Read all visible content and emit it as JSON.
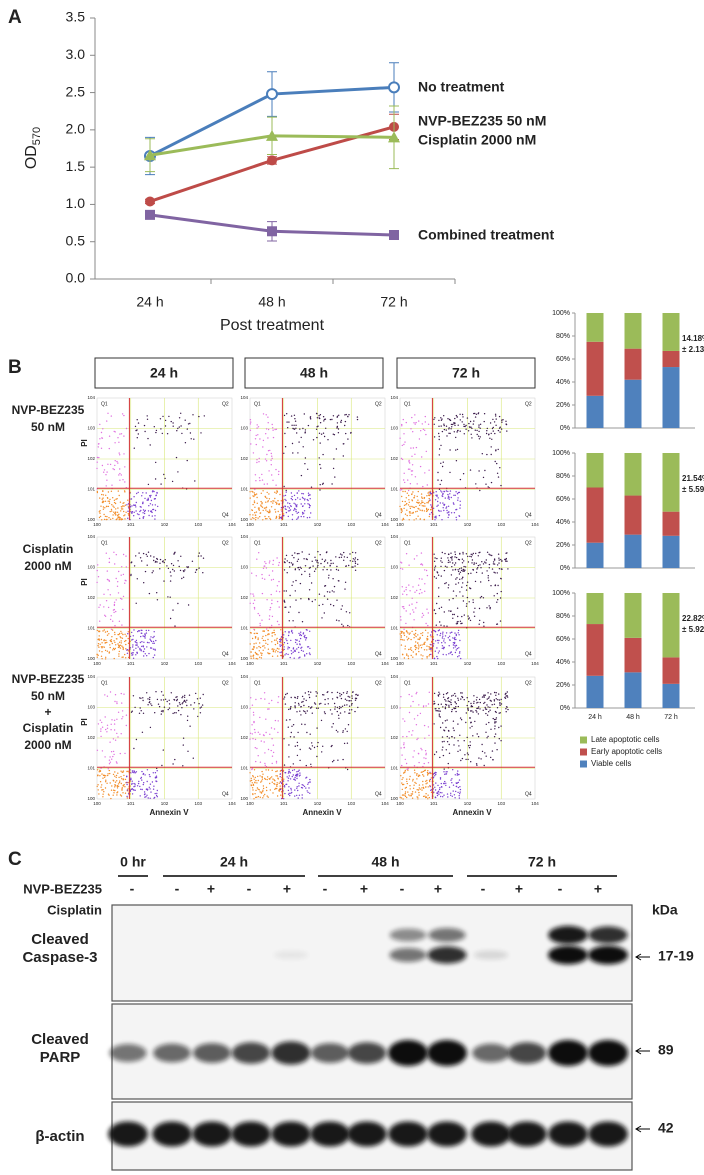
{
  "panel_labels": [
    "A",
    "B",
    "C"
  ],
  "chart_data": [
    {
      "type": "line",
      "y_label": "OD",
      "y_label_subscript": "570",
      "x_label": "Post treatment",
      "categories": [
        "24 h",
        "48 h",
        "72 h"
      ],
      "ylim": [
        0,
        3.5
      ],
      "yticks": [
        {
          "value": 0,
          "label": "0.0"
        },
        {
          "value": 0.5,
          "label": "0.5"
        },
        {
          "value": 1,
          "label": "1.0"
        },
        {
          "value": 1.5,
          "label": "1.5"
        },
        {
          "value": 2,
          "label": "2.0"
        },
        {
          "value": 2.5,
          "label": "2.5"
        },
        {
          "value": 3,
          "label": "3.0"
        },
        {
          "value": 3.5,
          "label": "3.5"
        }
      ],
      "series": [
        {
          "name": "No treatment",
          "color": "#4a7ebb",
          "marker": "open-circle",
          "values": [
            1.65,
            2.48,
            2.57
          ],
          "errors": [
            0.25,
            0.3,
            0.33
          ]
        },
        {
          "name": "NVP-BEZ235  50 nM",
          "color": "#be4b48",
          "marker": "circle",
          "values": [
            1.04,
            1.59,
            2.04
          ],
          "errors": [
            0.03,
            0.05,
            0.17
          ]
        },
        {
          "name": "Cisplatin  2000 nM",
          "color": "#9bbb59",
          "marker": "triangle",
          "values": [
            1.66,
            1.92,
            1.9
          ],
          "errors": [
            0.22,
            0.25,
            0.42
          ]
        },
        {
          "name": "Combined treatment",
          "color": "#8064a2",
          "marker": "square",
          "values": [
            0.86,
            0.64,
            0.59
          ],
          "errors": [
            0.04,
            0.13,
            0.02
          ]
        }
      ]
    },
    {
      "type": "stacked_bar",
      "categories": [
        "24 h",
        "48 h",
        "72 h"
      ],
      "ylim": [
        0,
        100
      ],
      "yticks": [
        {
          "value": 0,
          "label": "0%"
        },
        {
          "value": 20,
          "label": "20%"
        },
        {
          "value": 40,
          "label": "40%"
        },
        {
          "value": 60,
          "label": "60%"
        },
        {
          "value": 80,
          "label": "80%"
        },
        {
          "value": 100,
          "label": "100%"
        }
      ],
      "series": [
        {
          "name": "Viable cells",
          "color": "#4f81bd"
        },
        {
          "name": "Early apoptotic cells",
          "color": "#c0504d"
        },
        {
          "name": "Late apoptotic cells",
          "color": "#9bbb59"
        }
      ],
      "panels": [
        {
          "values": [
            [
              28,
              42,
              53
            ],
            [
              47,
              27,
              14
            ],
            [
              25,
              31,
              33
            ]
          ],
          "annotation": [
            "14.18%",
            "± 2.13%"
          ]
        },
        {
          "values": [
            [
              22,
              29,
              28
            ],
            [
              48,
              34,
              21
            ],
            [
              30,
              37,
              51
            ]
          ],
          "annotation": [
            "21.54%",
            "± 5.59%"
          ]
        },
        {
          "values": [
            [
              28,
              31,
              21
            ],
            [
              45,
              30,
              23
            ],
            [
              27,
              39,
              56
            ]
          ],
          "annotation": [
            "22.82%",
            "± 5.92%"
          ]
        }
      ]
    }
  ],
  "flow": {
    "columns": [
      "24 h",
      "48 h",
      "72 h"
    ],
    "rows": [
      [
        "NVP-BEZ235",
        "50 nM"
      ],
      [
        "Cisplatin",
        "2000 nM"
      ],
      [
        "NVP-BEZ235",
        "50 nM",
        "+",
        "Cisplatin",
        "2000 nM"
      ]
    ],
    "y_label": "PI",
    "x_label": "Annexin V",
    "tick_labels": [
      "100",
      "101",
      "102",
      "103",
      "104"
    ],
    "quadrants": [
      "Q1",
      "Q2",
      "Q4"
    ]
  },
  "blot": {
    "groups": [
      "0 hr",
      "24 h",
      "48 h",
      "72 h"
    ],
    "row_labels": [
      "NVP-BEZ235",
      "Cisplatin"
    ],
    "nvp": [
      "-",
      "-",
      "+",
      "-",
      "+",
      "-",
      "+",
      "-",
      "+",
      "-",
      "+",
      "-",
      "+"
    ],
    "cisplatin": [
      "-",
      "-",
      "-",
      "+",
      "+",
      "-",
      "-",
      "+",
      "+",
      "-",
      "-",
      "+",
      "+"
    ],
    "unit": "kDa",
    "proteins": [
      [
        "Cleaved",
        "Caspase-3"
      ],
      [
        "Cleaved",
        "PARP"
      ],
      [
        "β-actin"
      ]
    ],
    "sizes": [
      "17-19",
      "89",
      "42"
    ]
  }
}
